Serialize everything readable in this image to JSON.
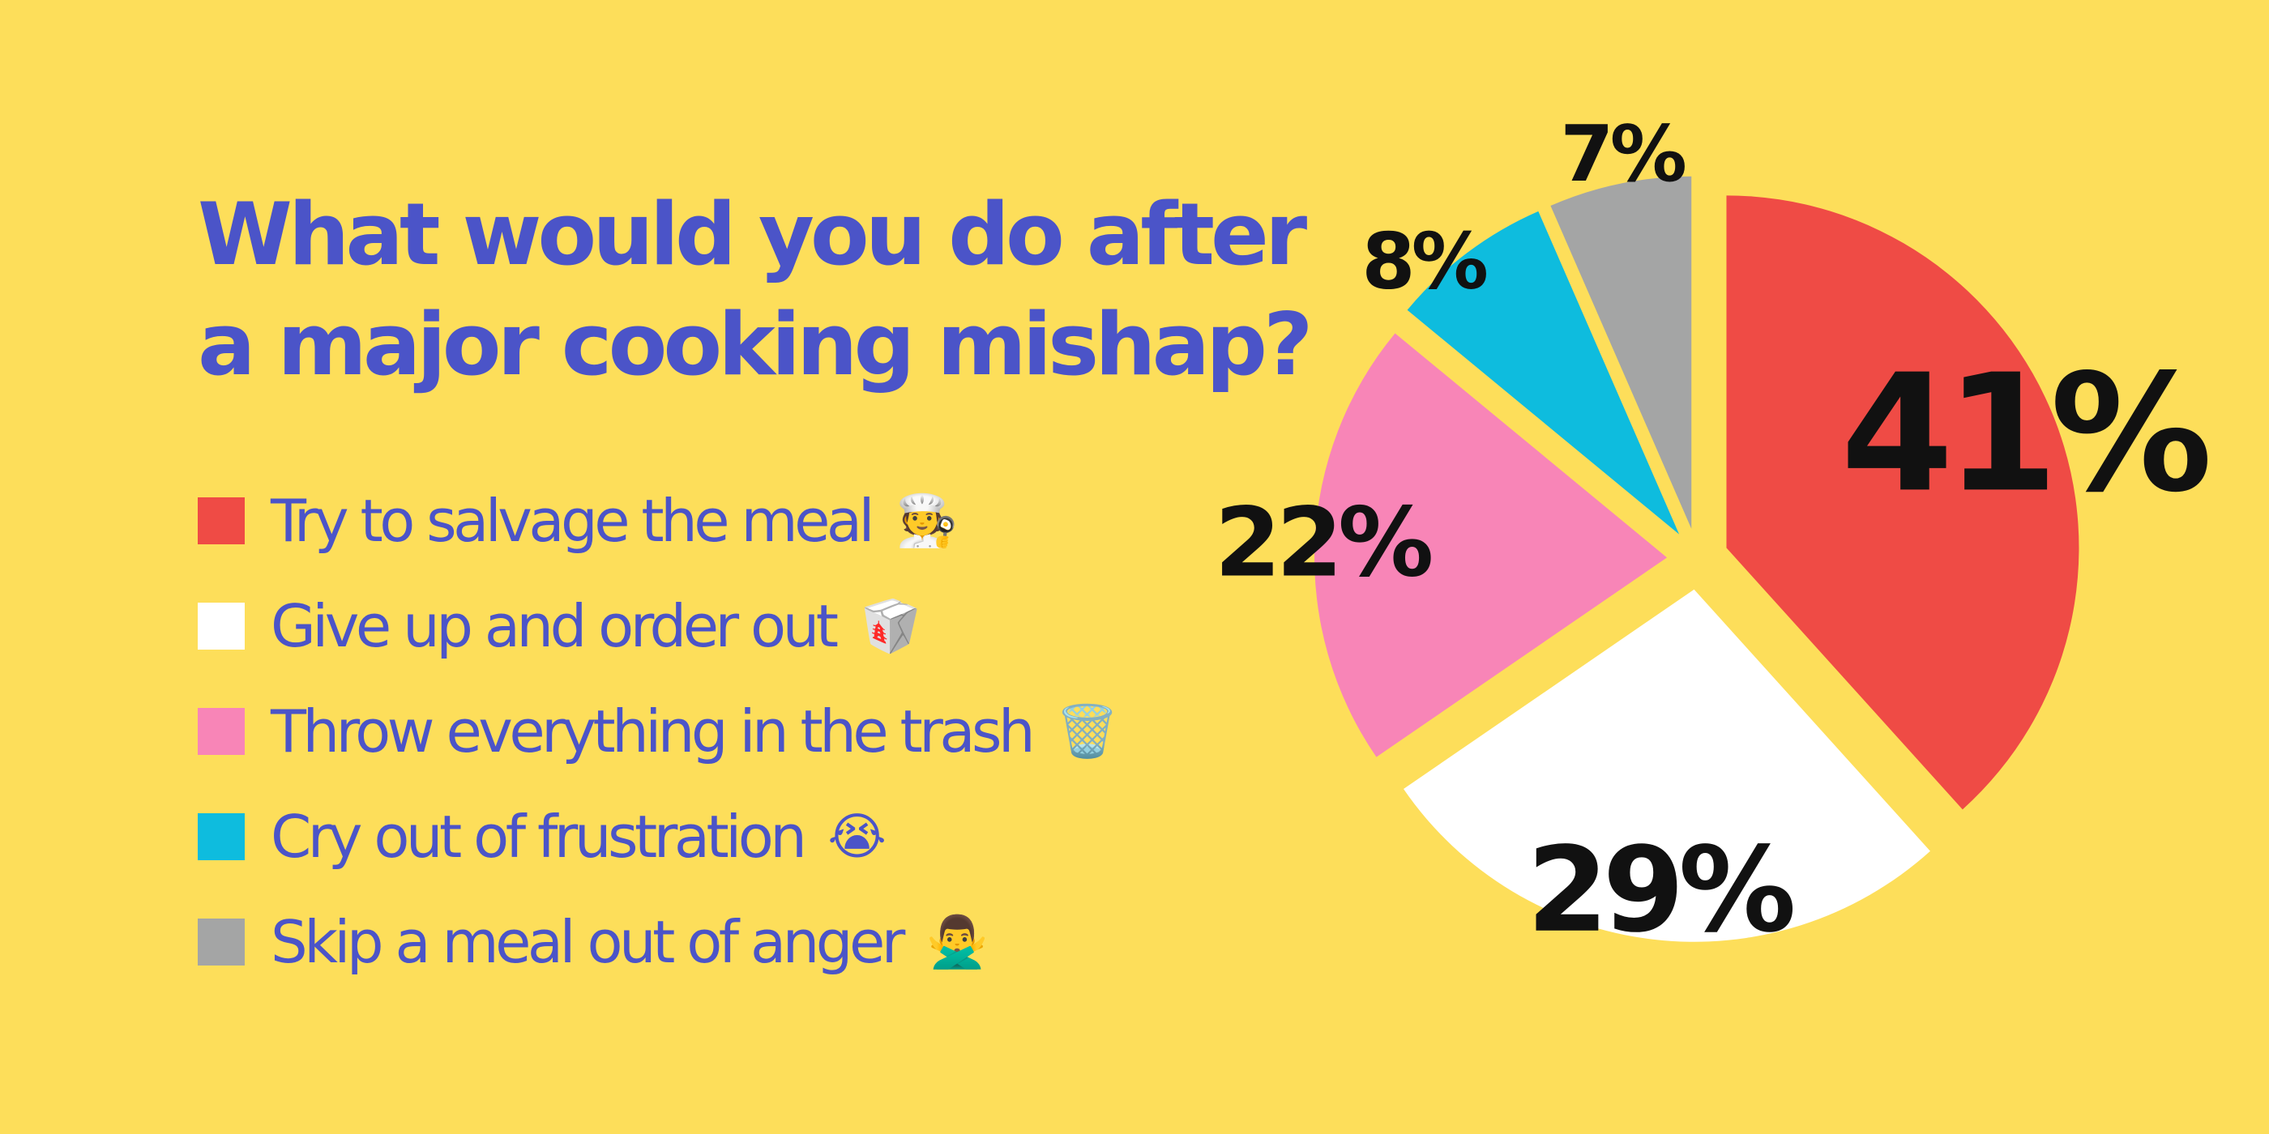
{
  "title": {
    "line1": "What would you do after",
    "line2": "a major cooking mishap?"
  },
  "legend": [
    {
      "label": "Try to salvage the meal",
      "emoji": "🧑‍🍳",
      "icon": "cook-icon",
      "color": "#EF4B45"
    },
    {
      "label": "Give up and order out",
      "emoji": "🥡",
      "icon": "takeout-box-icon",
      "color": "#FFFFFF"
    },
    {
      "label": "Throw everything in the trash",
      "emoji": "🗑️",
      "icon": "wastebasket-icon",
      "color": "#F885B7"
    },
    {
      "label": "Cry out of frustration",
      "emoji": "😭",
      "icon": "crying-face-icon",
      "color": "#0EBCDE"
    },
    {
      "label": "Skip a meal out of anger",
      "emoji": "🙅‍♂️",
      "icon": "gesturing-no-icon",
      "color": "#A4A5A5"
    }
  ],
  "colors": {
    "background": "#FDDE5A",
    "title": "#4B54C8",
    "percent_labels": "#111111"
  },
  "chart_data": {
    "type": "pie",
    "categories": [
      "Try to salvage the meal",
      "Give up and order out",
      "Throw everything in the trash",
      "Cry out of frustration",
      "Skip a meal out of anger"
    ],
    "values": [
      41,
      29,
      22,
      8,
      7
    ],
    "labels": [
      "41%",
      "29%",
      "22%",
      "8%",
      "7%"
    ],
    "colors": [
      "#EF4B45",
      "#FFFFFF",
      "#F885B7",
      "#0EBCDE",
      "#A4A5A5"
    ],
    "title": "What would you do after a major cooking mishap?",
    "legend": "left",
    "exploded": true
  }
}
